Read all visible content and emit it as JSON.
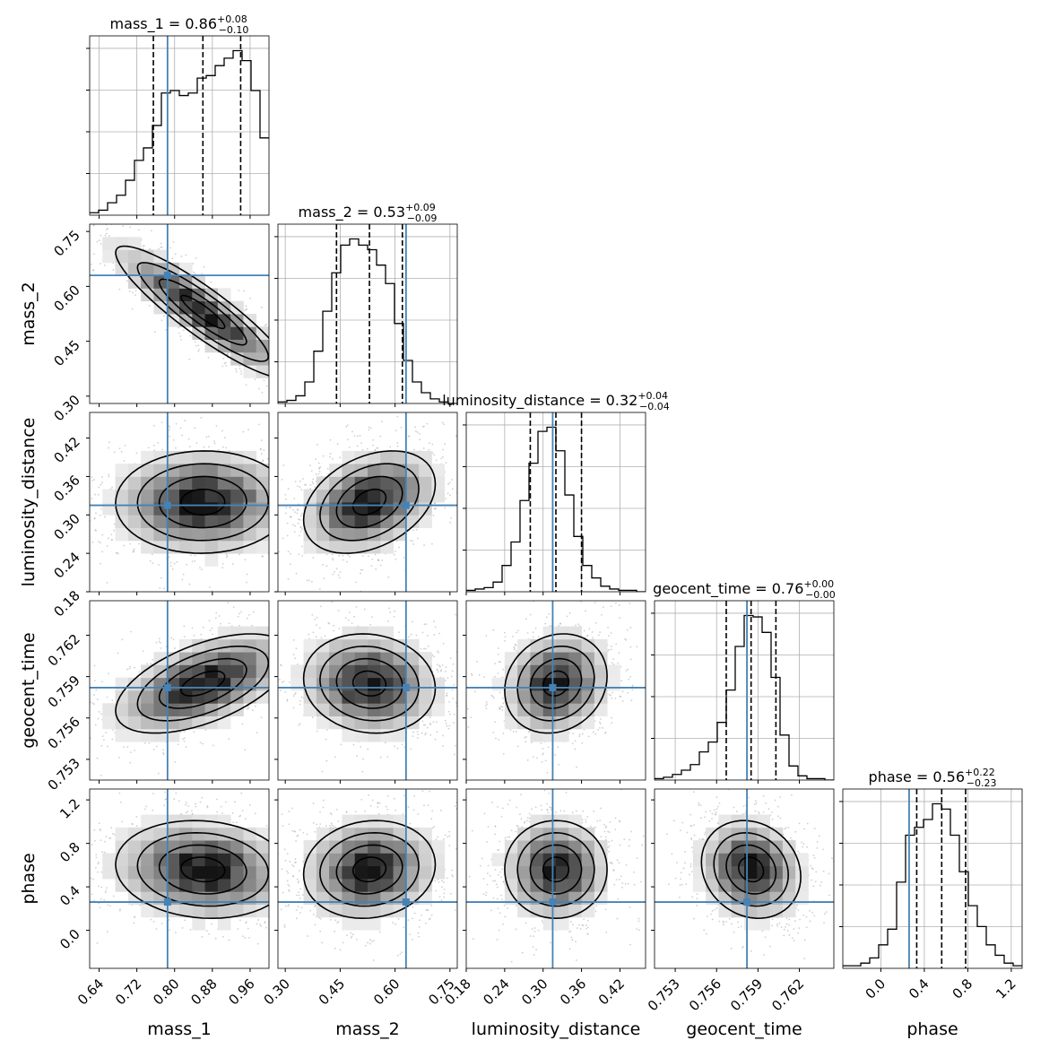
{
  "chart_data": {
    "type": "corner",
    "parameters": [
      "mass_1",
      "mass_2",
      "luminosity_distance",
      "geocent_time",
      "phase"
    ],
    "axis_labels": [
      "mass_1",
      "mass_2",
      "luminosity_distance",
      "geocent_time",
      "phase"
    ],
    "ranges": [
      [
        0.62,
        1.0
      ],
      [
        0.28,
        0.77
      ],
      [
        0.18,
        0.46
      ],
      [
        0.7515,
        0.7645
      ],
      [
        -0.35,
        1.3
      ]
    ],
    "ticks": [
      [
        0.64,
        0.72,
        0.8,
        0.88,
        0.96
      ],
      [
        0.3,
        0.45,
        0.6,
        0.75
      ],
      [
        0.18,
        0.24,
        0.3,
        0.36,
        0.42
      ],
      [
        0.753,
        0.756,
        0.759,
        0.762
      ],
      [
        0.0,
        0.4,
        0.8,
        1.2
      ]
    ],
    "tick_labels": [
      [
        "0.64",
        "0.72",
        "0.80",
        "0.88",
        "0.96"
      ],
      [
        "0.30",
        "0.45",
        "0.60",
        "0.75"
      ],
      [
        "0.18",
        "0.24",
        "0.30",
        "0.36",
        "0.42"
      ],
      [
        "0.753",
        "0.756",
        "0.759",
        "0.762"
      ],
      [
        "0.0",
        "0.4",
        "0.8",
        "1.2"
      ]
    ],
    "titles": [
      {
        "main": "mass_1 = 0.86",
        "sup": "+0.08",
        "sub": "−0.10"
      },
      {
        "main": "mass_2 = 0.53",
        "sup": "+0.09",
        "sub": "−0.09"
      },
      {
        "main": "luminosity_distance = 0.32",
        "sup": "+0.04",
        "sub": "−0.04"
      },
      {
        "main": "geocent_time = 0.76",
        "sup": "+0.00",
        "sub": "−0.00"
      },
      {
        "main": "phase = 0.56",
        "sup": "+0.22",
        "sub": "−0.23"
      }
    ],
    "truths": [
      0.785,
      0.63,
      0.315,
      0.7582,
      0.26
    ],
    "quantiles": [
      [
        0.755,
        0.86,
        0.94
      ],
      [
        0.44,
        0.53,
        0.62
      ],
      [
        0.28,
        0.32,
        0.36
      ],
      [
        0.7567,
        0.7585,
        0.7603
      ],
      [
        0.33,
        0.56,
        0.78
      ]
    ],
    "histograms": [
      [
        1,
        2,
        5,
        8,
        14,
        22,
        27,
        36,
        49,
        50,
        48,
        49,
        55,
        56,
        60,
        63,
        66,
        62,
        50,
        31
      ],
      [
        1,
        2,
        5,
        14,
        34,
        60,
        85,
        103,
        107,
        103,
        100,
        90,
        78,
        52,
        28,
        14,
        7,
        3,
        1,
        0
      ],
      [
        1,
        2,
        3,
        7,
        19,
        36,
        66,
        93,
        116,
        119,
        102,
        70,
        40,
        19,
        10,
        4,
        2,
        1,
        1,
        0
      ],
      [
        1,
        2,
        4,
        7,
        11,
        20,
        27,
        41,
        64,
        95,
        117,
        116,
        105,
        73,
        32,
        10,
        3,
        1,
        1,
        0
      ],
      [
        1,
        1,
        2,
        4,
        9,
        15,
        33,
        51,
        54,
        57,
        63,
        61,
        51,
        37,
        24,
        16,
        9,
        5,
        2,
        1
      ]
    ],
    "pair_correlations": {
      "mass_2|mass_1": -0.9,
      "luminosity_distance|mass_1": 0.02,
      "luminosity_distance|mass_2": 0.35,
      "geocent_time|mass_1": 0.55,
      "geocent_time|mass_2": -0.1,
      "geocent_time|luminosity_distance": 0.15,
      "phase|mass_1": -0.1,
      "phase|mass_2": 0.1,
      "phase|luminosity_distance": 0.0,
      "phase|geocent_time": -0.15
    },
    "colors": {
      "truth": "#4682b4",
      "hist": "#000000",
      "density": "#000000",
      "points": "#a8a8a8",
      "grid": "#b0b0b0"
    },
    "grid": true
  }
}
